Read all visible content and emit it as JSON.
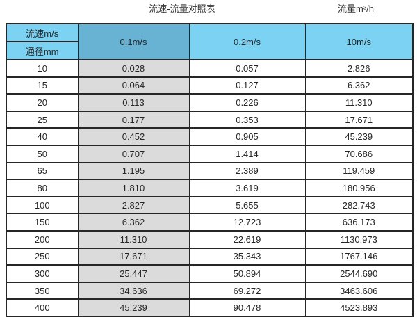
{
  "page": {
    "title": "流速-流量对照表",
    "unit_label": "流量m³/h"
  },
  "table": {
    "corner_top": "流速m/s",
    "corner_bottom": "通径mm",
    "velocity_columns": [
      "0.1m/s",
      "0.2m/s",
      "10m/s"
    ],
    "rows": [
      {
        "dn": "10",
        "values": [
          "0.028",
          "0.057",
          "2.826"
        ]
      },
      {
        "dn": "15",
        "values": [
          "0.064",
          "0.127",
          "6.362"
        ]
      },
      {
        "dn": "20",
        "values": [
          "0.113",
          "0.226",
          "11.310"
        ]
      },
      {
        "dn": "25",
        "values": [
          "0.177",
          "0.353",
          "17.671"
        ]
      },
      {
        "dn": "40",
        "values": [
          "0.452",
          "0.905",
          "45.239"
        ]
      },
      {
        "dn": "50",
        "values": [
          "0.707",
          "1.414",
          "70.686"
        ]
      },
      {
        "dn": "65",
        "values": [
          "1.195",
          "2.389",
          "119.459"
        ]
      },
      {
        "dn": "80",
        "values": [
          "1.810",
          "3.619",
          "180.956"
        ]
      },
      {
        "dn": "100",
        "values": [
          "2.827",
          "5.655",
          "282.743"
        ]
      },
      {
        "dn": "150",
        "values": [
          "6.362",
          "12.723",
          "636.173"
        ]
      },
      {
        "dn": "200",
        "values": [
          "11.310",
          "22.619",
          "1130.973"
        ]
      },
      {
        "dn": "250",
        "values": [
          "17.671",
          "35.343",
          "1767.146"
        ]
      },
      {
        "dn": "300",
        "values": [
          "25.447",
          "50.894",
          "2544.690"
        ]
      },
      {
        "dn": "350",
        "values": [
          "34.636",
          "69.272",
          "3463.606"
        ]
      },
      {
        "dn": "400",
        "values": [
          "45.239",
          "90.478",
          "4523.893"
        ]
      }
    ]
  },
  "colors": {
    "header_light_blue": "#7CD2F3",
    "header_dark_blue": "#68B2D4",
    "gray_column": "#DBDBDB",
    "border": "#262626",
    "text": "#262626",
    "background": "#FFFFFF"
  },
  "chart_data": {
    "type": "table",
    "title": "流速-流量对照表",
    "unit": "流量m³/h",
    "columns": [
      "通径mm",
      "0.1m/s",
      "0.2m/s",
      "10m/s"
    ],
    "rows": [
      [
        10,
        0.028,
        0.057,
        2.826
      ],
      [
        15,
        0.064,
        0.127,
        6.362
      ],
      [
        20,
        0.113,
        0.226,
        11.31
      ],
      [
        25,
        0.177,
        0.353,
        17.671
      ],
      [
        40,
        0.452,
        0.905,
        45.239
      ],
      [
        50,
        0.707,
        1.414,
        70.686
      ],
      [
        65,
        1.195,
        2.389,
        119.459
      ],
      [
        80,
        1.81,
        3.619,
        180.956
      ],
      [
        100,
        2.827,
        5.655,
        282.743
      ],
      [
        150,
        6.362,
        12.723,
        636.173
      ],
      [
        200,
        11.31,
        22.619,
        1130.973
      ],
      [
        250,
        17.671,
        35.343,
        1767.146
      ],
      [
        300,
        25.447,
        50.894,
        2544.69
      ],
      [
        350,
        34.636,
        69.272,
        3463.606
      ],
      [
        400,
        45.239,
        90.478,
        4523.893
      ]
    ]
  }
}
